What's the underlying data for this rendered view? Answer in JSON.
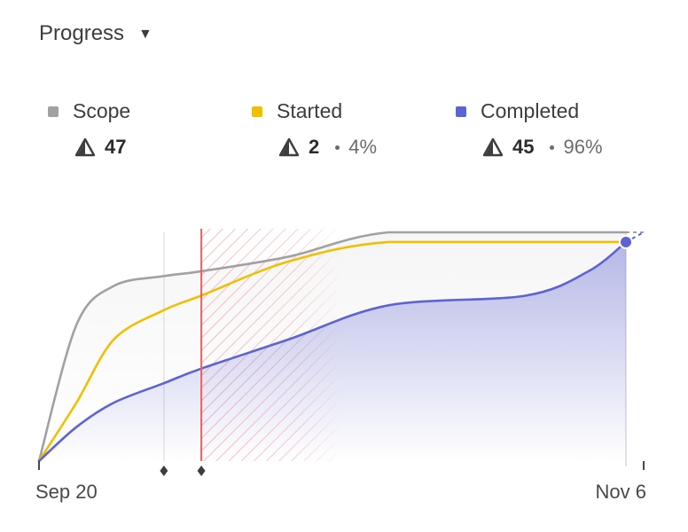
{
  "header": {
    "title": "Progress",
    "caret": "▼"
  },
  "legend": [
    {
      "key": "scope",
      "label": "Scope",
      "color": "#a1a1a5",
      "count": "47",
      "pct": ""
    },
    {
      "key": "started",
      "label": "Started",
      "color": "#f0bf00",
      "count": "2",
      "pct": "4%"
    },
    {
      "key": "completed",
      "label": "Completed",
      "color": "#5e63d2",
      "count": "45",
      "pct": "96%"
    }
  ],
  "chart_data": {
    "type": "area",
    "x_start_label": "Sep 20",
    "x_end_label": "Nov 6",
    "x_range_days": [
      0,
      47
    ],
    "ylim": [
      0,
      47
    ],
    "today_day": 13,
    "markers_days": [
      10,
      13
    ],
    "series": [
      {
        "name": "Scope",
        "color": "#a1a1a5",
        "x": [
          0,
          3,
          6,
          10,
          13,
          20,
          28,
          41,
          47
        ],
        "y": [
          0,
          28,
          36,
          38,
          39,
          42,
          47,
          47,
          47
        ]
      },
      {
        "name": "Started",
        "color": "#f0bf00",
        "x": [
          0,
          3,
          6,
          10,
          13,
          20,
          28,
          41,
          47
        ],
        "y": [
          0,
          12,
          25,
          31,
          34,
          41,
          45,
          45,
          45
        ]
      },
      {
        "name": "Completed",
        "color": "#5e63d2",
        "x": [
          0,
          3,
          6,
          10,
          13,
          20,
          28,
          39,
          44,
          47
        ],
        "y": [
          0,
          7,
          12,
          16,
          19,
          25,
          32,
          34,
          39,
          45
        ]
      }
    ]
  }
}
